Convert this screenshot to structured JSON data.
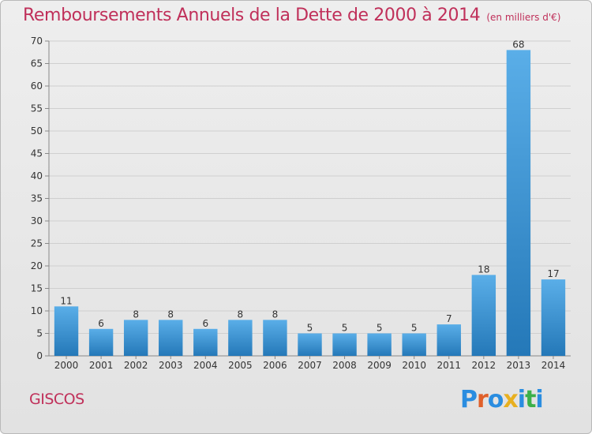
{
  "header": {
    "title": "Remboursements Annuels de la Dette de 2000 à 2014",
    "unit": "(en milliers d'€)"
  },
  "footer": {
    "commune": "GISCOS",
    "logo_text": "Proxiti"
  },
  "colors": {
    "title": "#c0305a",
    "bar_top": "#5aaee8",
    "bar_bottom": "#2478b8",
    "logo_letters": [
      "#2a8de0",
      "#e0602a",
      "#2a8de0",
      "#e8b020",
      "#2a8de0",
      "#3cb04a",
      "#2a8de0"
    ]
  },
  "chart_data": {
    "type": "bar",
    "title": "Remboursements Annuels de la Dette de 2000 à 2014",
    "unit": "(en milliers d'€)",
    "categories": [
      "2000",
      "2001",
      "2002",
      "2003",
      "2004",
      "2005",
      "2006",
      "2007",
      "2008",
      "2009",
      "2010",
      "2011",
      "2012",
      "2013",
      "2014"
    ],
    "values": [
      11,
      6,
      8,
      8,
      6,
      8,
      8,
      5,
      5,
      5,
      5,
      7,
      18,
      68,
      17
    ],
    "ylim": [
      0,
      70
    ],
    "yticks": [
      0,
      5,
      10,
      15,
      20,
      25,
      30,
      35,
      40,
      45,
      50,
      55,
      60,
      65,
      70
    ],
    "grid": true,
    "data_labels": true
  }
}
